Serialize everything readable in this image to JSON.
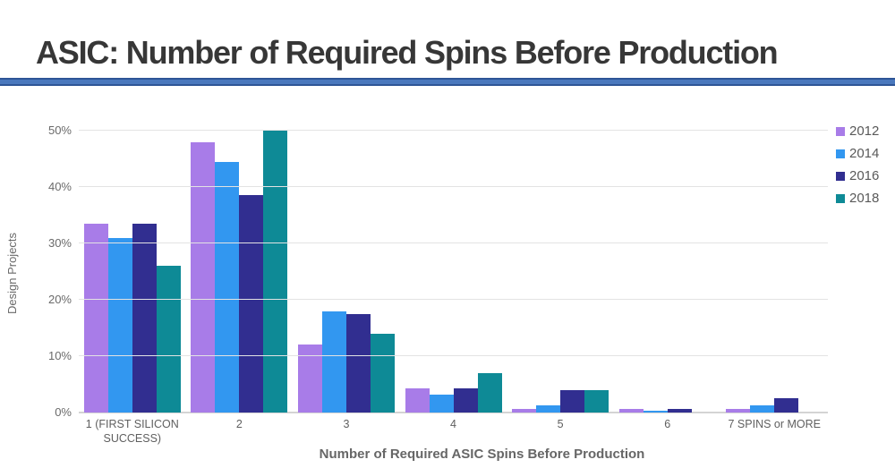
{
  "header": {
    "title": "ASIC: Number of Required Spins Before Production"
  },
  "colors": {
    "rule_center": "#4A78BD",
    "rule_edge": "#2E5596",
    "gridline": "#e3e3e3",
    "axis_text": "#6a6a6a"
  },
  "chart_data": {
    "type": "bar",
    "title": "ASIC: Number of Required Spins Before Production",
    "xlabel": "Number of Required ASIC Spins Before Production",
    "ylabel": "Design Projects",
    "ylim": [
      0,
      50
    ],
    "grid": true,
    "legend_position": "top-right",
    "yticks": [
      0,
      10,
      20,
      30,
      40,
      50
    ],
    "ytick_labels": [
      "0%",
      "10%",
      "20%",
      "30%",
      "40%",
      "50%"
    ],
    "categories": [
      "1 (FIRST SILICON SUCCESS)",
      "2",
      "3",
      "4",
      "5",
      "6",
      "7 SPINS or MORE"
    ],
    "series": [
      {
        "name": "2012",
        "color": "#A87CE8",
        "values": [
          33.5,
          48,
          12,
          4.3,
          0.7,
          0.6,
          0.6
        ]
      },
      {
        "name": "2014",
        "color": "#3297F0",
        "values": [
          31,
          44.5,
          18,
          3.2,
          1.2,
          0.3,
          1.2
        ]
      },
      {
        "name": "2016",
        "color": "#312E90",
        "values": [
          33.5,
          38.5,
          17.5,
          4.3,
          4,
          0.6,
          2.5
        ]
      },
      {
        "name": "2018",
        "color": "#0E8A96",
        "values": [
          26,
          50,
          14,
          7,
          4,
          0,
          0
        ]
      }
    ]
  }
}
